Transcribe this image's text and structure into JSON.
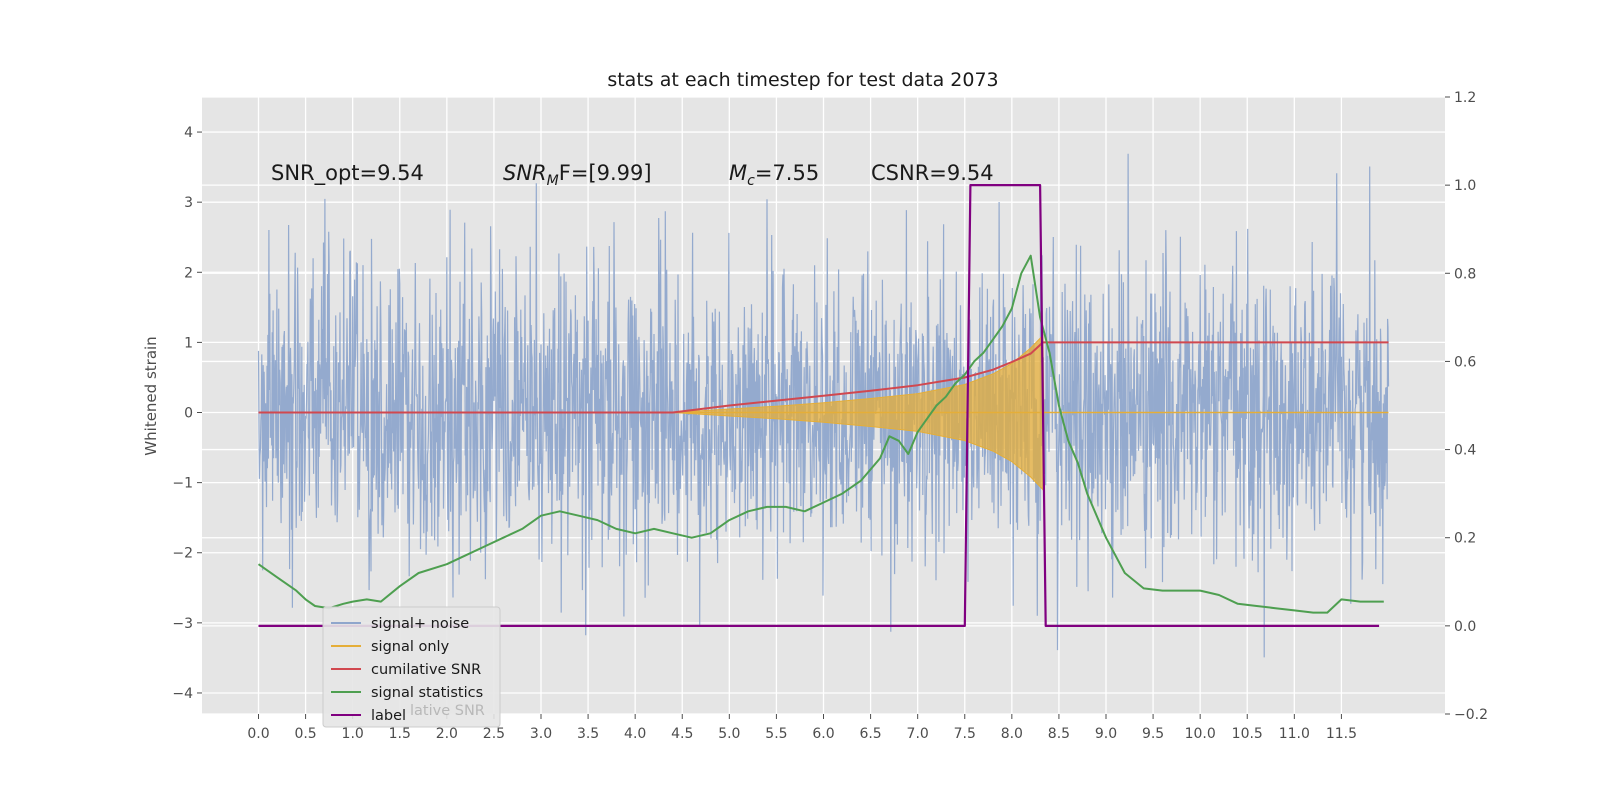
{
  "chart_data": {
    "type": "line",
    "title": "stats at each timestep for test data 2073",
    "xlabel": "",
    "ylabel": "Whitened strain",
    "xlim": [
      -0.6,
      12.6
    ],
    "ylim": [
      -4.3,
      4.5
    ],
    "y2lim": [
      -0.2,
      1.2
    ],
    "x_ticks": [
      "0.0",
      "0.5",
      "1.0",
      "1.5",
      "2.0",
      "2.5",
      "3.0",
      "3.5",
      "4.0",
      "4.5",
      "5.0",
      "5.5",
      "6.0",
      "6.5",
      "7.0",
      "7.5",
      "8.0",
      "8.5",
      "9.0",
      "9.5",
      "10.0",
      "10.5",
      "11.0",
      "11.5"
    ],
    "y_ticks": [
      "4",
      "3",
      "2",
      "1",
      "0",
      "−1",
      "−2",
      "−3",
      "−4"
    ],
    "y_ticks_values": [
      4,
      3,
      2,
      1,
      0,
      -1,
      -2,
      -3,
      -4
    ],
    "y2_ticks": [
      "1.2",
      "1.0",
      "0.8",
      "0.6",
      "0.4",
      "0.2",
      "0.0",
      "−0.2"
    ],
    "y2_ticks_values": [
      1.2,
      1.0,
      0.8,
      0.6,
      0.4,
      0.2,
      0.0,
      -0.2
    ],
    "grid": true,
    "legend_position": "lower-left",
    "colors": {
      "background": "#e5e5e5",
      "signal_noise": "#8fa6cc",
      "signal_only": "#e5ae38",
      "cumulative_snr": "#d1484f",
      "signal_statistics": "#4e9f50",
      "label": "#800080"
    },
    "annotations": {
      "snr_opt": "SNR_opt=9.54",
      "snr_mf_main": "SNR",
      "snr_mf_sub": "M",
      "snr_mf_rest": "F=[9.99]",
      "mc_main": "M",
      "mc_sub": "c",
      "mc_rest": "=7.55",
      "csnr": "CSNR=9.54"
    },
    "series": [
      {
        "name": "signal+ noise",
        "axis": "left",
        "description_values": {
          "x_range": [
            0,
            12.0
          ],
          "y_range": [
            -3.5,
            4.1
          ],
          "noise_sd": 1.0
        }
      },
      {
        "name": "signal only",
        "axis": "left",
        "x": [
          4.4,
          5.0,
          5.5,
          6.0,
          6.5,
          7.0,
          7.5,
          7.8,
          8.0,
          8.2,
          8.33,
          8.34,
          12.0
        ],
        "envelope": [
          0.0,
          0.05,
          0.09,
          0.14,
          0.2,
          0.27,
          0.4,
          0.55,
          0.7,
          0.92,
          1.1,
          0.0,
          0.0
        ]
      },
      {
        "name": "cumilative SNR",
        "axis": "left",
        "x": [
          0.0,
          4.4,
          5.0,
          5.5,
          6.0,
          6.5,
          7.0,
          7.5,
          7.8,
          8.0,
          8.2,
          8.33,
          8.34,
          12.0
        ],
        "values": [
          0.0,
          0.0,
          0.1,
          0.17,
          0.24,
          0.31,
          0.39,
          0.5,
          0.61,
          0.72,
          0.84,
          1.0,
          1.0,
          1.0
        ]
      },
      {
        "name": "signal statistics",
        "axis": "right",
        "x": [
          0.0,
          0.2,
          0.4,
          0.5,
          0.6,
          0.75,
          0.9,
          1.0,
          1.15,
          1.3,
          1.5,
          1.7,
          2.0,
          2.2,
          2.4,
          2.6,
          2.8,
          3.0,
          3.2,
          3.4,
          3.6,
          3.8,
          4.0,
          4.2,
          4.4,
          4.6,
          4.8,
          5.0,
          5.2,
          5.4,
          5.6,
          5.8,
          6.0,
          6.2,
          6.4,
          6.6,
          6.7,
          6.8,
          6.9,
          7.0,
          7.1,
          7.2,
          7.3,
          7.4,
          7.5,
          7.6,
          7.7,
          7.8,
          7.9,
          8.0,
          8.1,
          8.2,
          8.3,
          8.4,
          8.5,
          8.6,
          8.7,
          8.8,
          9.0,
          9.2,
          9.4,
          9.6,
          9.8,
          10.0,
          10.2,
          10.4,
          10.6,
          10.8,
          11.0,
          11.2,
          11.35,
          11.5,
          11.7,
          11.9,
          11.95
        ],
        "values": [
          0.14,
          0.11,
          0.08,
          0.06,
          0.045,
          0.04,
          0.05,
          0.055,
          0.06,
          0.055,
          0.09,
          0.12,
          0.14,
          0.16,
          0.18,
          0.2,
          0.22,
          0.25,
          0.26,
          0.25,
          0.24,
          0.22,
          0.21,
          0.22,
          0.21,
          0.2,
          0.21,
          0.24,
          0.26,
          0.27,
          0.27,
          0.26,
          0.28,
          0.3,
          0.33,
          0.38,
          0.43,
          0.42,
          0.39,
          0.44,
          0.47,
          0.5,
          0.52,
          0.55,
          0.57,
          0.6,
          0.62,
          0.65,
          0.68,
          0.72,
          0.8,
          0.84,
          0.7,
          0.62,
          0.5,
          0.42,
          0.37,
          0.3,
          0.2,
          0.12,
          0.085,
          0.08,
          0.08,
          0.08,
          0.07,
          0.05,
          0.045,
          0.04,
          0.035,
          0.03,
          0.03,
          0.06,
          0.055,
          0.055,
          0.055
        ]
      },
      {
        "name": "label",
        "axis": "right",
        "x": [
          0.0,
          7.5,
          7.56,
          8.3,
          8.36,
          11.9
        ],
        "values": [
          0.0,
          0.0,
          1.0,
          1.0,
          0.0,
          0.0
        ]
      }
    ],
    "legend_entries": [
      "signal+ noise",
      "signal only",
      "cumilative SNR",
      "signal statistics",
      "label"
    ],
    "legend_ghost_text": "lative SNR"
  }
}
